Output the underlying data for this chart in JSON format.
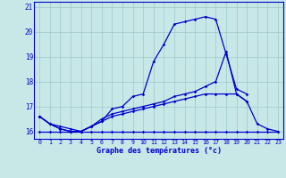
{
  "xlabel": "Graphe des températures (°c)",
  "hours": [
    0,
    1,
    2,
    3,
    4,
    5,
    6,
    7,
    8,
    9,
    10,
    11,
    12,
    13,
    14,
    15,
    16,
    17,
    18,
    19,
    20,
    21,
    22,
    23
  ],
  "line_flat": [
    16.0,
    16.0,
    16.0,
    16.0,
    16.0,
    16.0,
    16.0,
    16.0,
    16.0,
    16.0,
    16.0,
    16.0,
    16.0,
    16.0,
    16.0,
    16.0,
    16.0,
    16.0,
    16.0,
    16.0,
    16.0,
    16.0,
    16.0,
    16.0
  ],
  "line_slow": [
    16.6,
    16.3,
    16.1,
    16.0,
    16.0,
    16.2,
    16.4,
    16.6,
    16.7,
    16.8,
    16.9,
    17.0,
    17.1,
    17.2,
    17.3,
    17.4,
    17.5,
    17.5,
    17.5,
    17.5,
    17.2,
    16.3,
    16.1,
    16.0
  ],
  "line_mid": [
    16.6,
    16.3,
    16.2,
    16.1,
    16.0,
    16.2,
    16.5,
    16.7,
    16.8,
    16.9,
    17.0,
    17.1,
    17.2,
    17.4,
    17.5,
    17.6,
    17.8,
    18.0,
    19.2,
    17.5,
    17.2,
    null,
    null,
    null
  ],
  "line_main": [
    16.6,
    16.3,
    16.1,
    16.0,
    16.0,
    16.2,
    16.4,
    16.9,
    17.0,
    17.4,
    17.5,
    18.8,
    19.5,
    20.3,
    20.4,
    20.5,
    20.6,
    20.5,
    19.1,
    17.7,
    17.5,
    null,
    null,
    null
  ],
  "line_color": "#0000cc",
  "bg_color": "#c8e8e8",
  "grid_color": "#9ec8c8",
  "ylim": [
    15.7,
    21.2
  ],
  "yticks": [
    16,
    17,
    18,
    19,
    20,
    21
  ],
  "xlim": [
    -0.5,
    23.5
  ]
}
